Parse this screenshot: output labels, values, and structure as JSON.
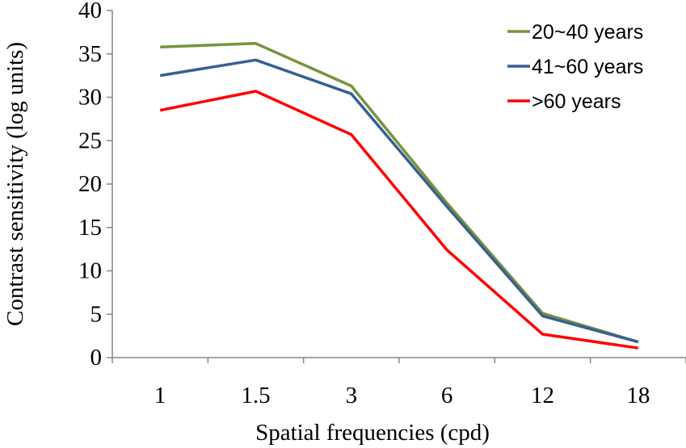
{
  "chart_data": {
    "type": "line",
    "categories": [
      "1",
      "1.5",
      "3",
      "6",
      "12",
      "18"
    ],
    "series": [
      {
        "name": "20~40 years",
        "color": "#77933c",
        "values": [
          35.8,
          36.2,
          31.3,
          17.8,
          5.1,
          1.8
        ]
      },
      {
        "name": "41~60 years",
        "color": "#376092",
        "values": [
          32.5,
          34.3,
          30.4,
          17.4,
          4.8,
          1.8
        ]
      },
      {
        "name": ">60 years",
        "color": "#ff0000",
        "values": [
          28.5,
          30.7,
          25.7,
          12.4,
          2.7,
          1.1
        ]
      }
    ],
    "title": "",
    "xlabel": "Spatial frequencies  (cpd)",
    "ylabel": "Contrast sensitivity  (log units)",
    "ylim": [
      0,
      40
    ],
    "yticks": [
      "0",
      "5",
      "10",
      "15",
      "20",
      "25",
      "30",
      "35",
      "40"
    ],
    "grid": false,
    "legend_position": "top-right"
  }
}
